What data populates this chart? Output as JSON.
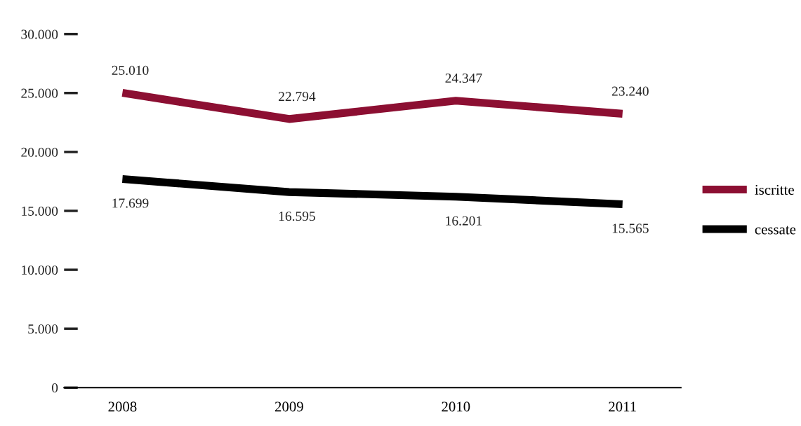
{
  "chart_data": {
    "type": "line",
    "categories": [
      "2008",
      "2009",
      "2010",
      "2011"
    ],
    "series": [
      {
        "name": "iscritte",
        "color": "#8c0f32",
        "values": [
          25010,
          22794,
          24347,
          23240
        ],
        "value_labels": [
          "25.010",
          "22.794",
          "24.347",
          "23.240"
        ]
      },
      {
        "name": "cessate",
        "color": "#000000",
        "values": [
          17699,
          16595,
          16201,
          15565
        ],
        "value_labels": [
          "17.699",
          "16.595",
          "16.201",
          "15.565"
        ]
      }
    ],
    "ylim": [
      0,
      30000
    ],
    "yticks": [
      {
        "value": 0,
        "label": "0"
      },
      {
        "value": 5000,
        "label": "5.000"
      },
      {
        "value": 10000,
        "label": "10.000"
      },
      {
        "value": 15000,
        "label": "15.000"
      },
      {
        "value": 20000,
        "label": "20.000"
      },
      {
        "value": 25000,
        "label": "25.000"
      },
      {
        "value": 30000,
        "label": "30.000"
      }
    ],
    "grid": false,
    "legend": "right",
    "marker": "none",
    "line_style": "solid"
  }
}
